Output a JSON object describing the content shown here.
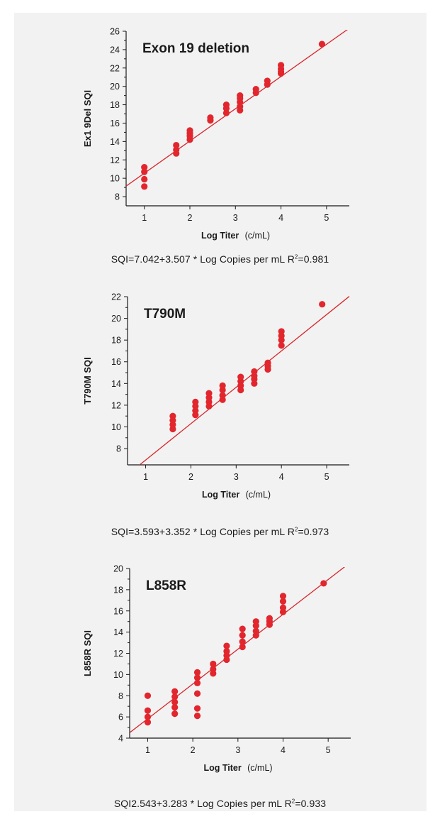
{
  "colors": {
    "point": "#e2262d",
    "fit_line": "#d7262b",
    "axis": "#1a1a1a",
    "panel_bg": "#f2f2f2"
  },
  "chart_data": [
    {
      "type": "scatter",
      "title": "Exon 19 deletion",
      "xlabel": "Log Titer",
      "xlabel_unit": "(c/mL)",
      "ylabel": "Ex1 9Del SQI",
      "xlim": [
        0.6,
        5.5
      ],
      "ylim": [
        7,
        26
      ],
      "xticks": [
        1,
        2,
        3,
        4,
        5
      ],
      "yticks": [
        8,
        10,
        12,
        14,
        16,
        18,
        20,
        22,
        24,
        26
      ],
      "fit": {
        "intercept": 7.042,
        "slope": 3.507
      },
      "points": [
        [
          1.0,
          9.1
        ],
        [
          1.0,
          9.9
        ],
        [
          1.0,
          10.7
        ],
        [
          1.0,
          11.2
        ],
        [
          1.7,
          12.7
        ],
        [
          1.7,
          13.1
        ],
        [
          1.7,
          13.6
        ],
        [
          2.0,
          14.2
        ],
        [
          2.0,
          14.6
        ],
        [
          2.0,
          14.9
        ],
        [
          2.0,
          15.2
        ],
        [
          2.45,
          16.3
        ],
        [
          2.45,
          16.6
        ],
        [
          2.8,
          17.1
        ],
        [
          2.8,
          17.6
        ],
        [
          2.8,
          18.0
        ],
        [
          3.1,
          17.4
        ],
        [
          3.1,
          17.8
        ],
        [
          3.1,
          18.3
        ],
        [
          3.1,
          18.7
        ],
        [
          3.1,
          19.0
        ],
        [
          3.45,
          19.3
        ],
        [
          3.45,
          19.7
        ],
        [
          3.7,
          20.2
        ],
        [
          3.7,
          20.6
        ],
        [
          4.0,
          21.4
        ],
        [
          4.0,
          21.6
        ],
        [
          4.0,
          21.9
        ],
        [
          4.0,
          22.3
        ],
        [
          4.9,
          24.6
        ]
      ],
      "caption": {
        "lead": "SQI=7.042+3.507 * Log Copies per mL R",
        "sup": "2",
        "tail": "=0.981"
      }
    },
    {
      "type": "scatter",
      "title": "T790M",
      "xlabel": "Log Titer",
      "xlabel_unit": "(c/mL)",
      "ylabel": "T790M SQI",
      "xlim": [
        0.6,
        5.5
      ],
      "ylim": [
        6.5,
        22
      ],
      "xticks": [
        1,
        2,
        3,
        4,
        5
      ],
      "yticks": [
        8,
        10,
        12,
        14,
        16,
        18,
        20,
        22
      ],
      "fit": {
        "intercept": 3.593,
        "slope": 3.352
      },
      "points": [
        [
          1.6,
          9.8
        ],
        [
          1.6,
          10.2
        ],
        [
          1.6,
          10.6
        ],
        [
          1.6,
          11.0
        ],
        [
          2.1,
          11.1
        ],
        [
          2.1,
          11.5
        ],
        [
          2.1,
          11.9
        ],
        [
          2.1,
          12.3
        ],
        [
          2.4,
          11.9
        ],
        [
          2.4,
          12.3
        ],
        [
          2.4,
          12.7
        ],
        [
          2.4,
          13.1
        ],
        [
          2.7,
          12.5
        ],
        [
          2.7,
          12.9
        ],
        [
          2.7,
          13.4
        ],
        [
          2.7,
          13.8
        ],
        [
          3.1,
          13.4
        ],
        [
          3.1,
          13.8
        ],
        [
          3.1,
          14.2
        ],
        [
          3.1,
          14.6
        ],
        [
          3.4,
          14.0
        ],
        [
          3.4,
          14.4
        ],
        [
          3.4,
          14.7
        ],
        [
          3.4,
          15.1
        ],
        [
          3.7,
          15.3
        ],
        [
          3.7,
          15.6
        ],
        [
          3.7,
          15.9
        ],
        [
          4.0,
          17.5
        ],
        [
          4.0,
          18.0
        ],
        [
          4.0,
          18.4
        ],
        [
          4.0,
          18.8
        ],
        [
          4.9,
          21.3
        ]
      ],
      "caption": {
        "lead": "SQI=3.593+3.352 * Log Copies per mL R",
        "sup": "2",
        "tail": "=0.973"
      }
    },
    {
      "type": "scatter",
      "title": "L858R",
      "xlabel": "Log Titer",
      "xlabel_unit": "(c/mL)",
      "ylabel": "L858R SQI",
      "xlim": [
        0.6,
        5.5
      ],
      "ylim": [
        4,
        20
      ],
      "xticks": [
        1,
        2,
        3,
        4,
        5
      ],
      "yticks": [
        4,
        6,
        8,
        10,
        12,
        14,
        16,
        18,
        20
      ],
      "fit": {
        "intercept": 2.543,
        "slope": 3.283
      },
      "points": [
        [
          1.0,
          5.5
        ],
        [
          1.0,
          6.0
        ],
        [
          1.0,
          6.6
        ],
        [
          1.0,
          8.0
        ],
        [
          1.6,
          6.3
        ],
        [
          1.6,
          6.9
        ],
        [
          1.6,
          7.4
        ],
        [
          1.6,
          7.9
        ],
        [
          1.6,
          8.4
        ],
        [
          2.1,
          6.1
        ],
        [
          2.1,
          6.8
        ],
        [
          2.1,
          8.2
        ],
        [
          2.1,
          9.2
        ],
        [
          2.1,
          9.7
        ],
        [
          2.1,
          10.2
        ],
        [
          2.45,
          10.1
        ],
        [
          2.45,
          10.5
        ],
        [
          2.45,
          11.0
        ],
        [
          2.75,
          11.4
        ],
        [
          2.75,
          11.8
        ],
        [
          2.75,
          12.2
        ],
        [
          2.75,
          12.7
        ],
        [
          3.1,
          12.6
        ],
        [
          3.1,
          13.1
        ],
        [
          3.1,
          13.7
        ],
        [
          3.1,
          14.3
        ],
        [
          3.4,
          13.7
        ],
        [
          3.4,
          14.1
        ],
        [
          3.4,
          14.6
        ],
        [
          3.4,
          15.0
        ],
        [
          3.7,
          14.7
        ],
        [
          3.7,
          15.0
        ],
        [
          3.7,
          15.3
        ],
        [
          4.0,
          15.9
        ],
        [
          4.0,
          16.3
        ],
        [
          4.0,
          16.9
        ],
        [
          4.0,
          17.4
        ],
        [
          4.9,
          18.6
        ]
      ],
      "caption": {
        "lead": "SQI2.543+3.283 * Log Copies per mL R",
        "sup": "2",
        "tail": "=0.933"
      }
    }
  ]
}
